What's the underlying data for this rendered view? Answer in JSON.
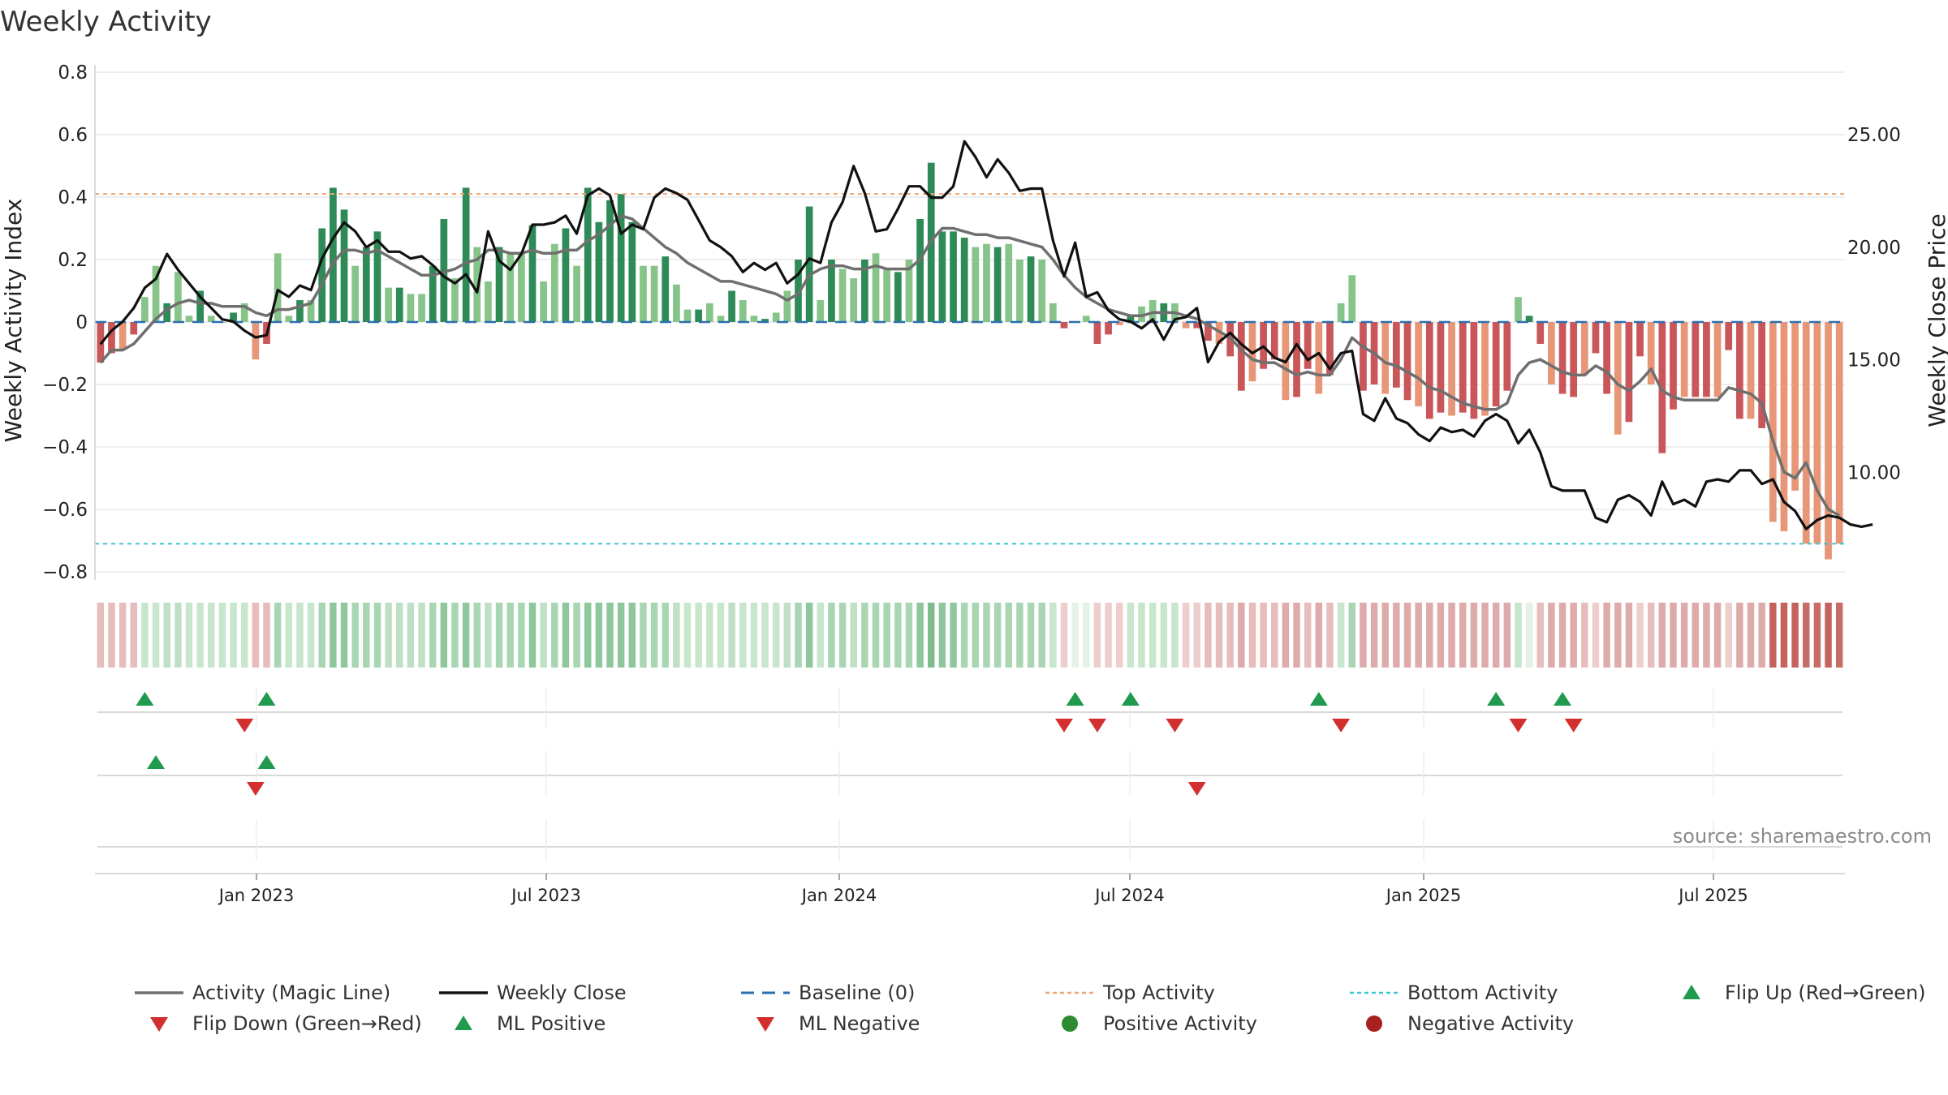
{
  "chart_data": {
    "type": "bar",
    "title": "Weekly Activity",
    "ylabel": "Weekly Activity Index",
    "y2label": "Weekly Close Price",
    "ylim": [
      -0.8,
      0.8
    ],
    "y_ticks": [
      "0.8",
      "0.6",
      "0.4",
      "0.2",
      "0",
      "−0.2",
      "−0.4",
      "−0.6",
      "−0.8"
    ],
    "y2lim": [
      5.6,
      27.8
    ],
    "y2_ticks": [
      "25.00",
      "20.00",
      "15.00",
      "10.00"
    ],
    "x_ticks": [
      "Jan 2023",
      "Jul 2023",
      "Jan 2024",
      "Jul 2024",
      "Jan 2025",
      "Jul 2025"
    ],
    "source": "source: sharemaestro.com",
    "top_activity": 0.41,
    "bottom_activity": -0.71,
    "activity": [
      -0.13,
      -0.1,
      -0.09,
      -0.04,
      0.08,
      0.18,
      0.06,
      0.16,
      0.02,
      0.1,
      0.02,
      0.0,
      0.03,
      0.06,
      -0.12,
      -0.07,
      0.22,
      0.02,
      0.07,
      0.07,
      0.3,
      0.43,
      0.36,
      0.18,
      0.24,
      0.29,
      0.11,
      0.11,
      0.09,
      0.09,
      0.18,
      0.33,
      0.14,
      0.43,
      0.24,
      0.13,
      0.24,
      0.22,
      0.22,
      0.31,
      0.13,
      0.25,
      0.3,
      0.18,
      0.43,
      0.32,
      0.39,
      0.41,
      0.32,
      0.18,
      0.18,
      0.21,
      0.12,
      0.04,
      0.04,
      0.06,
      0.02,
      0.1,
      0.07,
      0.02,
      0.01,
      0.03,
      0.1,
      0.2,
      0.37,
      0.07,
      0.2,
      0.17,
      0.14,
      0.2,
      0.22,
      0.17,
      0.16,
      0.2,
      0.33,
      0.51,
      0.29,
      0.29,
      0.27,
      0.24,
      0.25,
      0.24,
      0.25,
      0.2,
      0.21,
      0.2,
      0.06,
      -0.02,
      0.0,
      0.02,
      -0.07,
      -0.04,
      -0.01,
      0.02,
      0.05,
      0.07,
      0.06,
      0.06,
      -0.02,
      -0.02,
      -0.06,
      -0.07,
      -0.11,
      -0.22,
      -0.19,
      -0.15,
      -0.12,
      -0.25,
      -0.24,
      -0.15,
      -0.23,
      -0.17,
      0.06,
      0.15,
      -0.22,
      -0.2,
      -0.23,
      -0.21,
      -0.25,
      -0.27,
      -0.31,
      -0.29,
      -0.3,
      -0.29,
      -0.31,
      -0.3,
      -0.27,
      -0.22,
      0.08,
      0.02,
      -0.07,
      -0.2,
      -0.23,
      -0.24,
      -0.17,
      -0.1,
      -0.23,
      -0.36,
      -0.32,
      -0.11,
      -0.2,
      -0.42,
      -0.28,
      -0.24,
      -0.24,
      -0.24,
      -0.24,
      -0.09,
      -0.31,
      -0.31,
      -0.34,
      -0.64,
      -0.67,
      -0.54,
      -0.71,
      -0.71,
      -0.76,
      -0.71
    ],
    "magic_line": [
      -0.13,
      -0.09,
      -0.09,
      -0.07,
      -0.03,
      0.01,
      0.04,
      0.06,
      0.07,
      0.06,
      0.06,
      0.05,
      0.05,
      0.05,
      0.03,
      0.02,
      0.04,
      0.04,
      0.05,
      0.06,
      0.12,
      0.19,
      0.23,
      0.23,
      0.22,
      0.23,
      0.21,
      0.19,
      0.17,
      0.15,
      0.15,
      0.16,
      0.17,
      0.19,
      0.2,
      0.23,
      0.23,
      0.22,
      0.22,
      0.23,
      0.22,
      0.22,
      0.23,
      0.23,
      0.26,
      0.28,
      0.31,
      0.34,
      0.33,
      0.3,
      0.27,
      0.24,
      0.22,
      0.19,
      0.17,
      0.15,
      0.13,
      0.13,
      0.12,
      0.11,
      0.1,
      0.09,
      0.07,
      0.09,
      0.15,
      0.17,
      0.18,
      0.18,
      0.17,
      0.17,
      0.18,
      0.17,
      0.17,
      0.17,
      0.2,
      0.26,
      0.3,
      0.3,
      0.29,
      0.28,
      0.28,
      0.27,
      0.27,
      0.26,
      0.25,
      0.24,
      0.2,
      0.15,
      0.11,
      0.08,
      0.06,
      0.04,
      0.03,
      0.02,
      0.02,
      0.03,
      0.03,
      0.03,
      0.02,
      0.01,
      -0.01,
      -0.03,
      -0.05,
      -0.09,
      -0.12,
      -0.13,
      -0.13,
      -0.15,
      -0.17,
      -0.16,
      -0.17,
      -0.17,
      -0.12,
      -0.05,
      -0.08,
      -0.1,
      -0.13,
      -0.14,
      -0.16,
      -0.18,
      -0.21,
      -0.22,
      -0.24,
      -0.26,
      -0.27,
      -0.28,
      -0.28,
      -0.26,
      -0.17,
      -0.13,
      -0.12,
      -0.14,
      -0.16,
      -0.17,
      -0.17,
      -0.14,
      -0.16,
      -0.2,
      -0.22,
      -0.19,
      -0.15,
      -0.22,
      -0.24,
      -0.25,
      -0.25,
      -0.25,
      -0.25,
      -0.21,
      -0.22,
      -0.23,
      -0.26,
      -0.38,
      -0.48,
      -0.5,
      -0.45,
      -0.54,
      -0.6,
      -0.62
    ],
    "weekly_close": [
      15.7,
      16.3,
      16.7,
      17.3,
      18.2,
      18.6,
      19.7,
      19.0,
      18.4,
      17.8,
      17.3,
      16.8,
      16.7,
      16.3,
      16.0,
      16.1,
      18.1,
      17.8,
      18.3,
      18.1,
      19.5,
      20.4,
      21.1,
      20.7,
      20.0,
      20.3,
      19.8,
      19.8,
      19.5,
      19.6,
      19.2,
      18.7,
      18.4,
      18.8,
      18.0,
      20.7,
      19.4,
      19.0,
      19.7,
      21.0,
      21.0,
      21.1,
      21.4,
      20.6,
      22.3,
      22.6,
      22.3,
      20.6,
      21.0,
      20.8,
      22.2,
      22.6,
      22.4,
      22.1,
      21.2,
      20.3,
      20.0,
      19.6,
      18.9,
      19.3,
      19.0,
      19.3,
      18.4,
      18.8,
      19.5,
      19.3,
      21.1,
      22.0,
      23.6,
      22.4,
      20.7,
      20.8,
      21.7,
      22.7,
      22.7,
      22.2,
      22.2,
      22.7,
      24.7,
      24.0,
      23.1,
      23.9,
      23.3,
      22.5,
      22.6,
      22.6,
      20.3,
      18.7,
      20.2,
      17.8,
      18.0,
      17.2,
      16.8,
      16.7,
      16.4,
      16.8,
      15.9,
      16.8,
      16.9,
      17.3,
      14.9,
      15.8,
      16.2,
      15.7,
      15.3,
      15.6,
      15.1,
      14.9,
      15.7,
      15.0,
      15.3,
      14.6,
      15.3,
      15.4,
      12.6,
      12.3,
      13.3,
      12.4,
      12.2,
      11.7,
      11.4,
      12.0,
      11.8,
      11.9,
      11.6,
      12.3,
      12.6,
      12.3,
      11.3,
      11.9,
      10.9,
      9.4,
      9.2,
      9.2,
      9.2,
      8.0,
      7.8,
      8.8,
      9.0,
      8.7,
      8.1,
      9.6,
      8.6,
      8.8,
      8.5,
      9.6,
      9.7,
      9.6,
      10.1,
      10.1,
      9.5,
      9.7,
      8.7,
      8.3,
      7.5,
      7.9,
      8.1,
      8.0,
      7.7,
      7.6,
      7.7
    ],
    "strip_colors": [
      "#e6bcbc",
      "#e6bcbc",
      "#e6bcbc",
      "#e6bcbc",
      "#c7e6cc",
      "#c7e6cc",
      "#bfe0c6",
      "#bfe0c6",
      "#c7e6cc",
      "#c7e6cc",
      "#c7e6cc",
      "#c7e6cc",
      "#c7e6cc",
      "#c7e6cc",
      "#e6bcbc",
      "#e6bcbc",
      "#a8d5b2",
      "#c7e6cc",
      "#c7e6cc",
      "#c7e6cc",
      "#a8d5b2",
      "#8ec79c",
      "#8ec79c",
      "#a8d5b2",
      "#a8d5b2",
      "#a8d5b2",
      "#bfe0c6",
      "#bfe0c6",
      "#bfe0c6",
      "#bfe0c6",
      "#a8d5b2",
      "#8ec79c",
      "#a8d5b2",
      "#8ec79c",
      "#a8d5b2",
      "#bfe0c6",
      "#a8d5b2",
      "#a8d5b2",
      "#a8d5b2",
      "#8ec79c",
      "#bfe0c6",
      "#a8d5b2",
      "#8ec79c",
      "#a8d5b2",
      "#8ec79c",
      "#8ec79c",
      "#8ec79c",
      "#8ec79c",
      "#8ec79c",
      "#a8d5b2",
      "#a8d5b2",
      "#a8d5b2",
      "#bfe0c6",
      "#c7e6cc",
      "#c7e6cc",
      "#c7e6cc",
      "#c7e6cc",
      "#bfe0c6",
      "#c7e6cc",
      "#c7e6cc",
      "#c7e6cc",
      "#c7e6cc",
      "#bfe0c6",
      "#a8d5b2",
      "#8ec79c",
      "#c7e6cc",
      "#a8d5b2",
      "#a8d5b2",
      "#bfe0c6",
      "#a8d5b2",
      "#a8d5b2",
      "#a8d5b2",
      "#a8d5b2",
      "#a8d5b2",
      "#8ec79c",
      "#7dbd8c",
      "#8ec79c",
      "#8ec79c",
      "#a8d5b2",
      "#a8d5b2",
      "#a8d5b2",
      "#a8d5b2",
      "#a8d5b2",
      "#a8d5b2",
      "#a8d5b2",
      "#a8d5b2",
      "#c7e6cc",
      "#eecdcd",
      "#e3f1e6",
      "#e3f1e6",
      "#eecdcd",
      "#eecdcd",
      "#eecdcd",
      "#c7e6cc",
      "#c7e6cc",
      "#c7e6cc",
      "#c7e6cc",
      "#c7e6cc",
      "#eecdcd",
      "#eecdcd",
      "#e6bcbc",
      "#e6bcbc",
      "#e6bcbc",
      "#dfaaaa",
      "#e6bcbc",
      "#e6bcbc",
      "#e6bcbc",
      "#dfaaaa",
      "#dfaaaa",
      "#e6bcbc",
      "#dfaaaa",
      "#e6bcbc",
      "#c7e6cc",
      "#a8d5b2",
      "#dfaaaa",
      "#dfaaaa",
      "#dfaaaa",
      "#dfaaaa",
      "#dfaaaa",
      "#dfaaaa",
      "#dfaaaa",
      "#dfaaaa",
      "#dfaaaa",
      "#dfaaaa",
      "#dfaaaa",
      "#dfaaaa",
      "#dfaaaa",
      "#dfaaaa",
      "#c7e6cc",
      "#e3f1e6",
      "#e6bcbc",
      "#dfaaaa",
      "#dfaaaa",
      "#dfaaaa",
      "#e6bcbc",
      "#eecdcd",
      "#dfaaaa",
      "#dfaaaa",
      "#dfaaaa",
      "#eecdcd",
      "#e6bcbc",
      "#dfaaaa",
      "#dfaaaa",
      "#dfaaaa",
      "#dfaaaa",
      "#dfaaaa",
      "#dfaaaa",
      "#eecdcd",
      "#dfaaaa",
      "#dfaaaa",
      "#dfaaaa",
      "#c4625d",
      "#c4625d",
      "#c4625d",
      "#c76b66",
      "#c76b66",
      "#c4625d",
      "#c76b66"
    ],
    "flip_up_weeks": [
      4,
      15,
      88,
      93,
      110,
      126,
      132
    ],
    "flip_down_weeks": [
      13,
      87,
      90,
      97,
      112,
      128,
      133
    ],
    "ml_positive_weeks": [
      5,
      15
    ],
    "ml_negative_weeks": [
      14,
      99
    ],
    "legend": [
      {
        "label": "Activity (Magic Line)",
        "symbol": "line",
        "color": "#6f6f6f"
      },
      {
        "label": "Weekly Close",
        "symbol": "line",
        "color": "#111111"
      },
      {
        "label": "Baseline (0)",
        "symbol": "dash",
        "color": "#2a6fb0"
      },
      {
        "label": "Top Activity",
        "symbol": "dot",
        "color": "#f0a470"
      },
      {
        "label": "Bottom Activity",
        "symbol": "dot",
        "color": "#3cc8d8"
      },
      {
        "label": "Flip Up (Red→Green)",
        "symbol": "tri-up",
        "color": "#1f9a4e"
      },
      {
        "label": "Flip Down (Green→Red)",
        "symbol": "tri-down",
        "color": "#d32f2f"
      },
      {
        "label": "ML Positive",
        "symbol": "tri-up",
        "color": "#1f9a4e"
      },
      {
        "label": "ML Negative",
        "symbol": "tri-down",
        "color": "#d32f2f"
      },
      {
        "label": "Positive Activity",
        "symbol": "circle",
        "color": "#2e8b32"
      },
      {
        "label": "Negative Activity",
        "symbol": "circle",
        "color": "#a8201f"
      }
    ],
    "colors": {
      "positive_strong": "#2e8b57",
      "positive_light": "#87c489",
      "negative_strong": "#c9575a",
      "negative_light": "#e79778",
      "grid": "#e8e8e8"
    }
  }
}
